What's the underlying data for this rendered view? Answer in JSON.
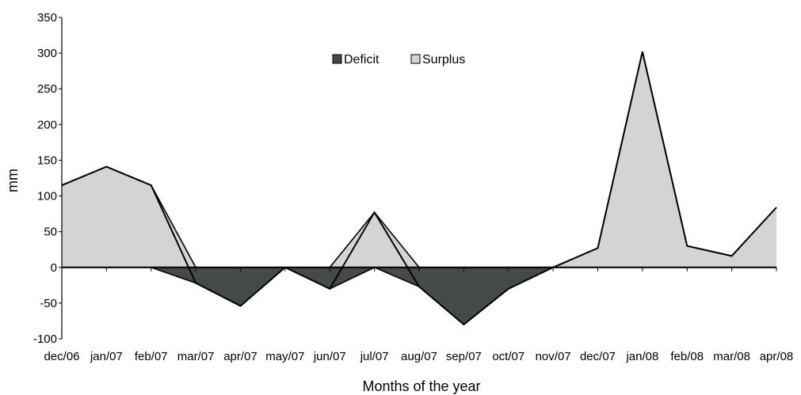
{
  "chart_data": {
    "type": "area",
    "title": "",
    "xlabel": "Months of the year",
    "ylabel": "mm",
    "categories": [
      "dec/06",
      "jan/07",
      "feb/07",
      "mar/07",
      "apr/07",
      "may/07",
      "jun/07",
      "jul/07",
      "aug/07",
      "sep/07",
      "oct/07",
      "nov/07",
      "dec/07",
      "jan/08",
      "feb/08",
      "mar/08",
      "apr/08"
    ],
    "y_ticks": [
      "350",
      "300",
      "250",
      "200",
      "150",
      "100",
      "50",
      "0",
      "-50",
      "-100"
    ],
    "ylim": [
      -100,
      350
    ],
    "grid": false,
    "legend_position": "top-center",
    "series": [
      {
        "name": "Deficit",
        "color": "#434a48",
        "values": [
          0,
          0,
          0,
          -22,
          -54,
          0,
          -30,
          0,
          -27,
          -80,
          -30,
          0,
          0,
          0,
          0,
          0,
          0
        ]
      },
      {
        "name": "Surplus",
        "color": "#d4d4d4",
        "values": [
          115,
          141,
          115,
          0,
          0,
          0,
          0,
          77,
          0,
          0,
          0,
          0,
          27,
          302,
          30,
          16,
          84
        ]
      }
    ]
  }
}
